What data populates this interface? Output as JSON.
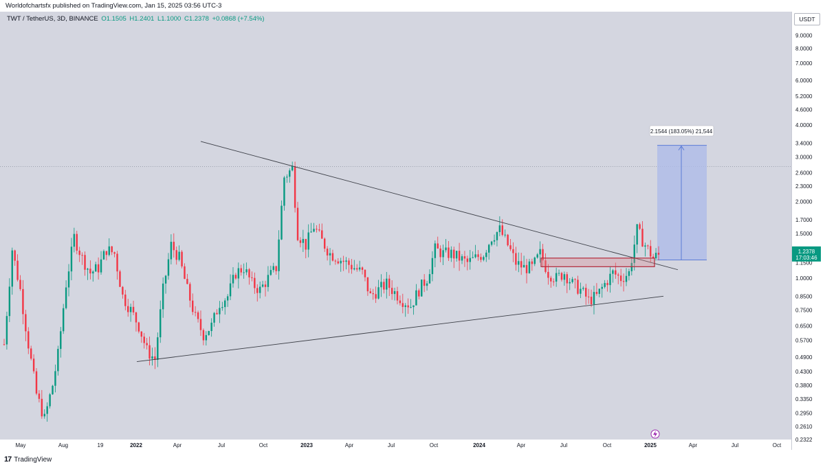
{
  "header": {
    "published_line": "Worldofchartsfx published on TradingView.com, Jan 15, 2025 03:56 UTC-3"
  },
  "symbol": {
    "name": "TWT / TetherUS, 3D, BINANCE",
    "open": "O1.1505",
    "high": "H1.2401",
    "low": "L1.1000",
    "close": "C1.2378",
    "change": "+0.0868 (+7.54%)"
  },
  "currency": "USDT",
  "last_price": {
    "value": "1.2378",
    "countdown": "17:03:46"
  },
  "measure_label": "2.1544 (183.05%) 21,544",
  "footer": {
    "brand": "TradingView"
  },
  "colors": {
    "up": "#089981",
    "down": "#f23645",
    "measure": "#5b7ad6",
    "zone": "#b2283a",
    "background": "#d4d6e0"
  },
  "chart_data": {
    "type": "candlestick",
    "title": "",
    "y_scale": "log",
    "ylim": [
      0.2322,
      9.8
    ],
    "y_ticks": [
      "9.0000",
      "8.0000",
      "7.0000",
      "6.0000",
      "5.2000",
      "4.6000",
      "4.0000",
      "3.4000",
      "3.0000",
      "2.6000",
      "2.3000",
      "2.0000",
      "1.7000",
      "1.5000",
      "1.3000",
      "1.1500",
      "1.0000",
      "0.8500",
      "0.7500",
      "0.6500",
      "0.5700",
      "0.4900",
      "0.4300",
      "0.3800",
      "0.3350",
      "0.2950",
      "0.2610",
      "0.2322"
    ],
    "x_ticks": [
      "May",
      "Aug",
      "19",
      "2022",
      "Apr",
      "Jul",
      "Oct",
      "2023",
      "Apr",
      "Jul",
      "Oct",
      "2024",
      "Apr",
      "Jul",
      "Oct",
      "2025",
      "Apr",
      "Jul",
      "Oct"
    ],
    "x_tick_bold": [
      "2022",
      "2023",
      "2024",
      "2025"
    ],
    "price_path": [
      [
        0,
        0.55
      ],
      [
        3,
        1.3
      ],
      [
        6,
        0.9
      ],
      [
        9,
        0.55
      ],
      [
        12,
        0.35
      ],
      [
        15,
        0.28
      ],
      [
        18,
        0.38
      ],
      [
        20,
        0.5
      ],
      [
        23,
        0.95
      ],
      [
        26,
        1.45
      ],
      [
        29,
        1.2
      ],
      [
        32,
        1.05
      ],
      [
        35,
        1.1
      ],
      [
        38,
        1.3
      ],
      [
        41,
        1.25
      ],
      [
        44,
        0.85
      ],
      [
        47,
        0.75
      ],
      [
        50,
        0.65
      ],
      [
        53,
        0.52
      ],
      [
        56,
        0.48
      ],
      [
        59,
        0.9
      ],
      [
        62,
        1.35
      ],
      [
        65,
        1.2
      ],
      [
        68,
        0.9
      ],
      [
        71,
        0.7
      ],
      [
        74,
        0.6
      ],
      [
        77,
        0.65
      ],
      [
        80,
        0.8
      ],
      [
        83,
        0.85
      ],
      [
        86,
        1.05
      ],
      [
        89,
        1.1
      ],
      [
        92,
        0.95
      ],
      [
        95,
        0.9
      ],
      [
        98,
        1.0
      ],
      [
        101,
        1.1
      ],
      [
        104,
        2.5
      ],
      [
        107,
        2.7
      ],
      [
        109,
        1.5
      ],
      [
        112,
        1.35
      ],
      [
        115,
        1.6
      ],
      [
        118,
        1.4
      ],
      [
        121,
        1.25
      ],
      [
        124,
        1.2
      ],
      [
        127,
        1.15
      ],
      [
        130,
        1.1
      ],
      [
        133,
        1.05
      ],
      [
        136,
        0.85
      ],
      [
        139,
        0.9
      ],
      [
        142,
        0.95
      ],
      [
        145,
        0.88
      ],
      [
        148,
        0.82
      ],
      [
        151,
        0.78
      ],
      [
        154,
        0.9
      ],
      [
        157,
        1.0
      ],
      [
        160,
        1.3
      ],
      [
        163,
        1.25
      ],
      [
        166,
        1.25
      ],
      [
        169,
        1.2
      ],
      [
        172,
        1.15
      ],
      [
        175,
        1.2
      ],
      [
        178,
        1.25
      ],
      [
        181,
        1.45
      ],
      [
        184,
        1.55
      ],
      [
        187,
        1.35
      ],
      [
        190,
        1.15
      ],
      [
        193,
        1.1
      ],
      [
        196,
        1.1
      ],
      [
        199,
        1.25
      ],
      [
        202,
        1.05
      ],
      [
        205,
        1.0
      ],
      [
        208,
        1.05
      ],
      [
        211,
        0.95
      ],
      [
        214,
        0.9
      ],
      [
        217,
        0.82
      ],
      [
        220,
        0.85
      ],
      [
        223,
        0.95
      ],
      [
        226,
        1.05
      ],
      [
        229,
        1.0
      ],
      [
        232,
        1.05
      ],
      [
        235,
        1.55
      ],
      [
        238,
        1.35
      ],
      [
        241,
        1.2
      ],
      [
        243,
        1.24
      ]
    ],
    "candle_count": 244,
    "trendlines": [
      {
        "from": [
          "2021-09",
          3.45
        ],
        "to": [
          "2025-03",
          1.08
        ]
      },
      {
        "from": [
          "2021-12",
          0.47
        ],
        "to": [
          "2025-03",
          0.85
        ]
      }
    ],
    "horizontal_line": {
      "price": 2.75,
      "style": "dotted"
    },
    "support_zone": {
      "from_price": 1.11,
      "to_price": 1.2
    },
    "measure": {
      "from_price": 1.18,
      "to_price": 3.33,
      "change": "2.1544 (183.05%) 21,544"
    },
    "last_price": 1.2378
  }
}
